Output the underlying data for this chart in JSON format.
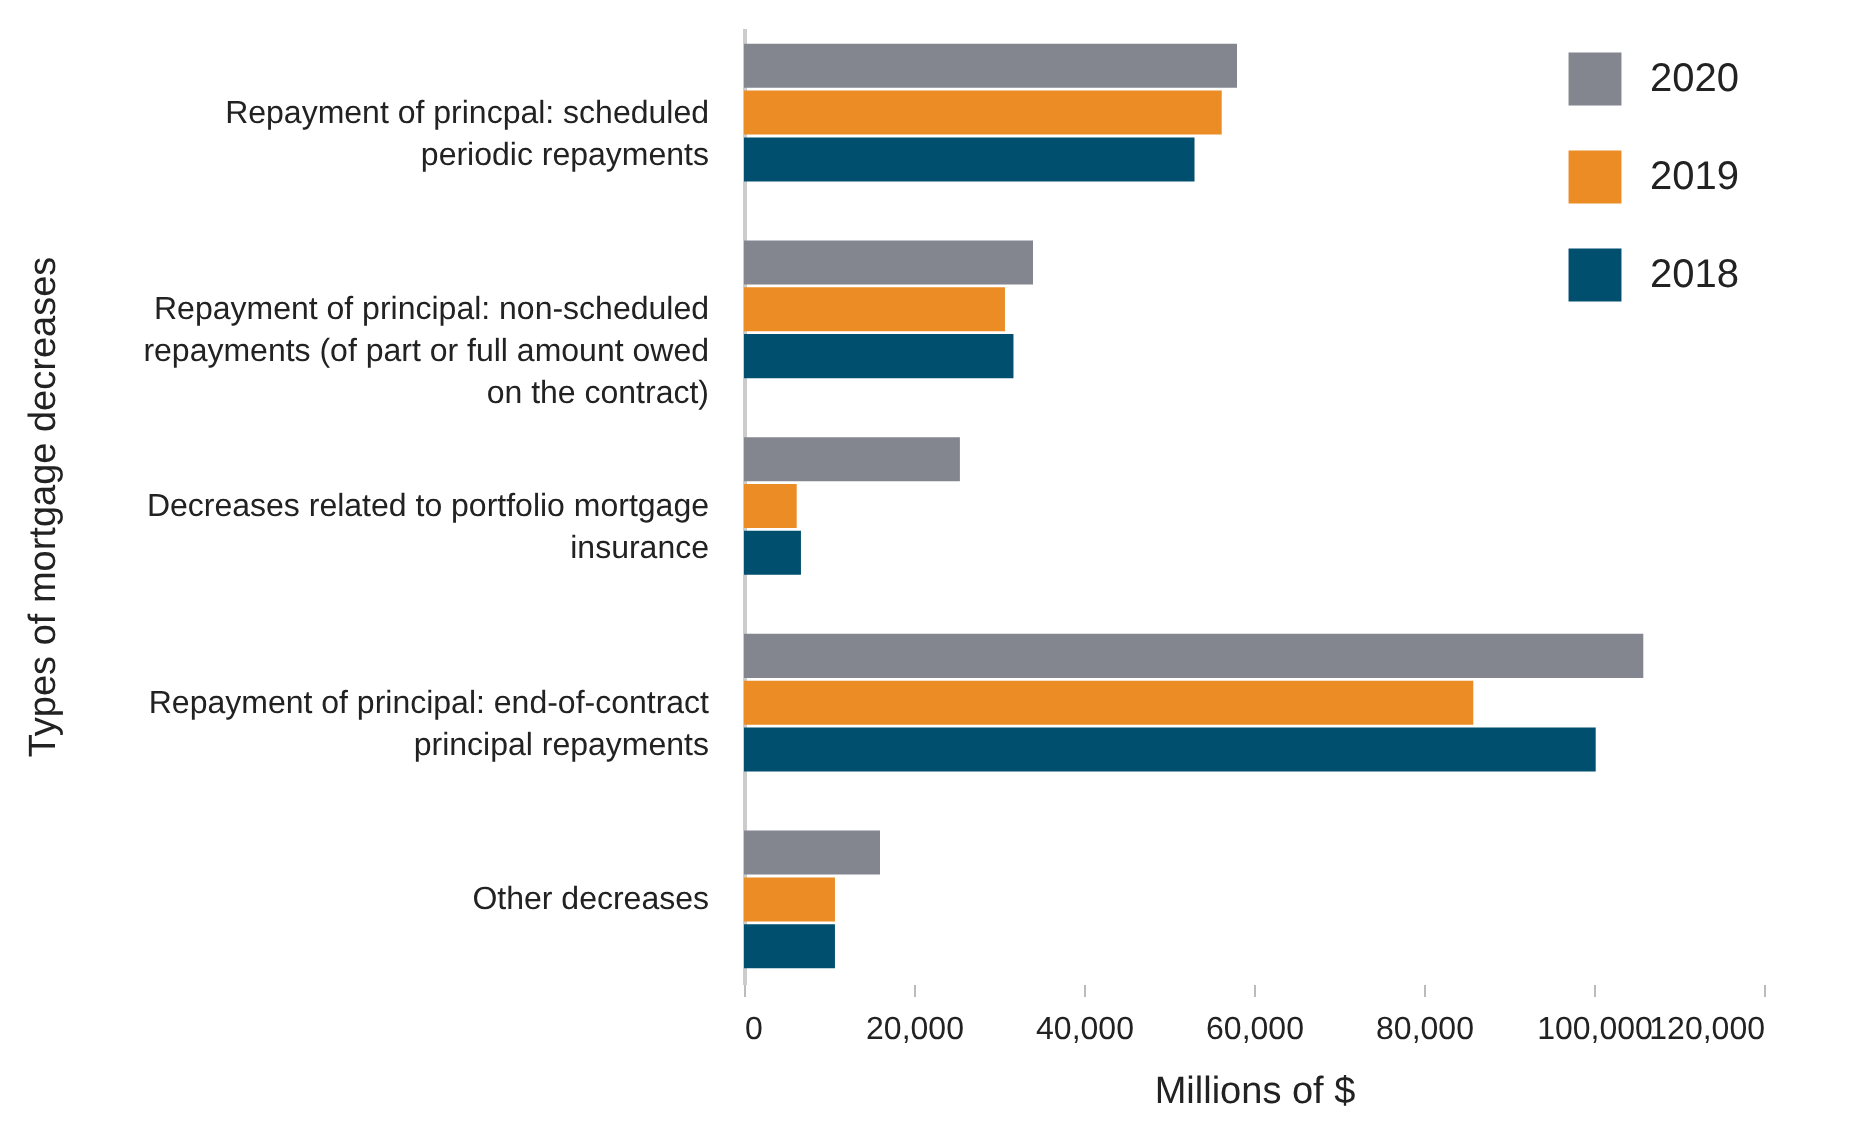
{
  "chart_data": {
    "type": "bar",
    "orientation": "horizontal",
    "ylabel": "Types of mortgage decreases",
    "xlabel": "Millions of $",
    "categories": [
      "Repayment of princpal: scheduled periodic repayments",
      "Repayment of principal: non-scheduled repayments (of part or full amount owed on the contract)",
      "Decreases related to portfolio mortgage insurance",
      "Repayment of principal: end-of-contract principal repayments",
      "Other decreases"
    ],
    "series": [
      {
        "name": "2020",
        "color": "#83868f",
        "values": [
          58000,
          34000,
          25400,
          105800,
          16000
        ]
      },
      {
        "name": "2019",
        "color": "#eb8c25",
        "values": [
          56200,
          30700,
          6200,
          85800,
          10700
        ]
      },
      {
        "name": "2018",
        "color": "#004f6e",
        "values": [
          53000,
          31700,
          6700,
          100200,
          10700
        ]
      }
    ],
    "xlim": [
      0,
      120000
    ],
    "xticks": [
      0,
      {
        "value": 20000,
        "label": "20,000"
      },
      {
        "value": 40000,
        "label": "40,000"
      },
      {
        "value": 60000,
        "label": "60,000"
      },
      {
        "value": 80000,
        "label": "80,000"
      },
      {
        "value": 100000,
        "label": "100,000"
      },
      {
        "value": 120000,
        "label": "120,000"
      }
    ],
    "grid": false,
    "legend": "top right"
  }
}
